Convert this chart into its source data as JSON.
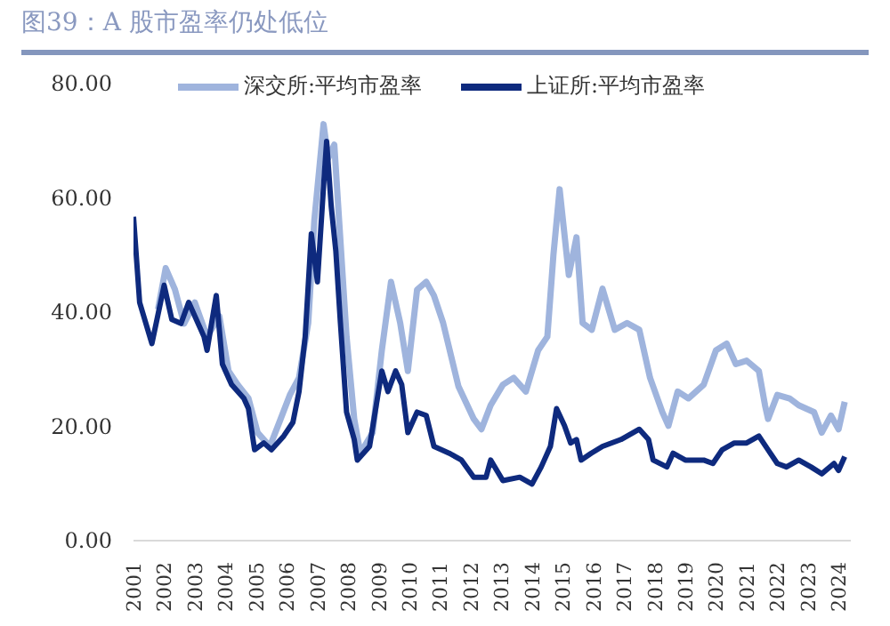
{
  "chart_data": {
    "type": "line",
    "title": "图39：A 股市盈率仍处低位",
    "xlim": [
      2001,
      2024.4
    ],
    "xticks": [
      2001,
      2002,
      2003,
      2004,
      2005,
      2006,
      2007,
      2008,
      2009,
      2010,
      2011,
      2012,
      2013,
      2014,
      2015,
      2016,
      2017,
      2018,
      2019,
      2020,
      2021,
      2022,
      2023,
      2024
    ],
    "ylim": [
      0,
      80
    ],
    "yticks": [
      {
        "value": 0,
        "label": "0.00"
      },
      {
        "value": 20,
        "label": "20.00"
      },
      {
        "value": 40,
        "label": "40.00"
      },
      {
        "value": 60,
        "label": "60.00"
      },
      {
        "value": 80,
        "label": "80.00"
      }
    ],
    "grid": false,
    "legend": "top",
    "marker": "none",
    "series": [
      {
        "name": "深交所:平均市盈率",
        "color": "#9fb4dd",
        "x": [
          2001.8,
          2002.05,
          2002.35,
          2002.65,
          2003.0,
          2003.4,
          2003.8,
          2004.1,
          2004.4,
          2004.75,
          2005.05,
          2005.45,
          2005.8,
          2006.1,
          2006.4,
          2006.7,
          2006.9,
          2007.2,
          2007.35,
          2007.55,
          2007.75,
          2007.95,
          2008.2,
          2008.4,
          2008.8,
          2009.1,
          2009.4,
          2009.7,
          2009.95,
          2010.25,
          2010.55,
          2010.8,
          2011.1,
          2011.6,
          2012.1,
          2012.35,
          2012.65,
          2013.05,
          2013.4,
          2013.8,
          2014.2,
          2014.5,
          2014.7,
          2014.9,
          2015.2,
          2015.45,
          2015.65,
          2015.95,
          2016.3,
          2016.7,
          2017.1,
          2017.5,
          2017.85,
          2018.25,
          2018.45,
          2018.75,
          2019.1,
          2019.6,
          2020.0,
          2020.35,
          2020.65,
          2021.0,
          2021.4,
          2021.6,
          2021.7,
          2022.0,
          2022.4,
          2022.7,
          2023.2,
          2023.45,
          2023.75,
          2024.0,
          2024.2
        ],
        "values": [
          40.5,
          47.7,
          44,
          38,
          41.7,
          35.7,
          39.3,
          29.7,
          27.3,
          24.9,
          18.9,
          16.5,
          21.3,
          25.5,
          28.5,
          38.1,
          56.1,
          72.9,
          66.9,
          69.3,
          52.5,
          35.7,
          21.3,
          15.3,
          18.9,
          33.3,
          45.3,
          38.1,
          29.7,
          43.9,
          45.3,
          42.9,
          38.1,
          27,
          21.3,
          19.5,
          23.7,
          27.3,
          28.5,
          26.1,
          33.3,
          35.7,
          50.1,
          61.5,
          46.5,
          53.1,
          38.1,
          36.9,
          44.1,
          36.9,
          38.1,
          36.9,
          28.5,
          22.5,
          20.1,
          26.1,
          24.9,
          27.3,
          33.3,
          34.5,
          30.9,
          31.5,
          29.7,
          23.7,
          21.3,
          25.5,
          24.9,
          23.7,
          22.5,
          18.9,
          21.9,
          19.5,
          24.3
        ]
      },
      {
        "name": "上证所:平均市盈率",
        "color": "#0e2a7e",
        "x": [
          2001.0,
          2001.2,
          2001.6,
          2002.0,
          2002.25,
          2002.55,
          2002.8,
          2003.3,
          2003.4,
          2003.7,
          2003.9,
          2004.2,
          2004.6,
          2004.75,
          2004.95,
          2005.25,
          2005.5,
          2005.9,
          2006.2,
          2006.4,
          2006.6,
          2006.8,
          2007.0,
          2007.2,
          2007.3,
          2007.45,
          2007.6,
          2007.75,
          2007.95,
          2008.2,
          2008.3,
          2008.7,
          2009.1,
          2009.3,
          2009.55,
          2009.75,
          2009.95,
          2010.25,
          2010.55,
          2010.8,
          2011.3,
          2011.7,
          2012.1,
          2012.5,
          2012.65,
          2013.05,
          2013.6,
          2014.0,
          2014.3,
          2014.6,
          2014.8,
          2015.06,
          2015.26,
          2015.45,
          2015.6,
          2015.93,
          2016.3,
          2016.9,
          2017.5,
          2017.8,
          2017.95,
          2018.4,
          2018.6,
          2019.0,
          2019.6,
          2019.9,
          2020.2,
          2020.6,
          2021.0,
          2021.4,
          2021.7,
          2022.0,
          2022.3,
          2022.7,
          2023.1,
          2023.45,
          2023.85,
          2024.0,
          2024.2
        ],
        "values": [
          56.7,
          41.7,
          34.5,
          44.7,
          38.7,
          38,
          41.7,
          35.7,
          33.3,
          42.9,
          30.9,
          27.3,
          24.9,
          23.1,
          15.9,
          17.1,
          15.9,
          18.3,
          20.7,
          26.1,
          35.7,
          53.7,
          45.3,
          62.1,
          69.9,
          58.5,
          50.7,
          38.1,
          22.5,
          17.7,
          14.1,
          16.5,
          29.7,
          26.1,
          29.7,
          27.3,
          18.9,
          22.5,
          21.9,
          16.5,
          15.3,
          14.1,
          11.1,
          11.1,
          14.1,
          10.5,
          11.1,
          9.9,
          12.9,
          16.5,
          23.1,
          20.1,
          17.1,
          17.7,
          14.1,
          15.3,
          16.5,
          17.7,
          19.5,
          17.7,
          14.1,
          12.9,
          15.3,
          14.1,
          14.1,
          13.5,
          15.9,
          17.1,
          17.1,
          18.3,
          15.9,
          13.5,
          12.9,
          14.1,
          12.9,
          11.7,
          13.5,
          12.3,
          14.7
        ]
      }
    ]
  }
}
